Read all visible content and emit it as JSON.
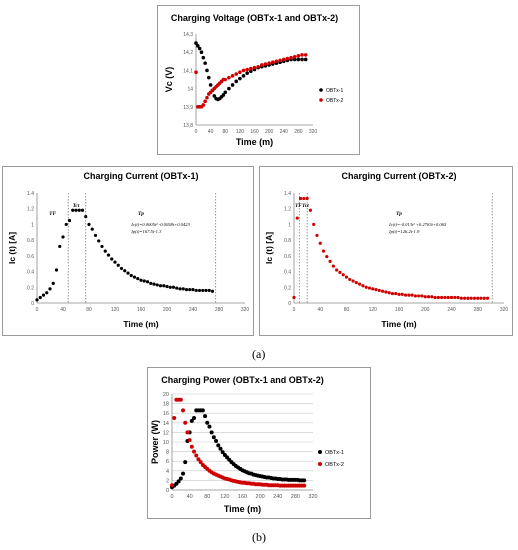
{
  "chart_data": [
    {
      "type": "scatter",
      "title": "Charging Voltage (OBTx-1 and OBTx-2)",
      "xlabel": "Time (m)",
      "ylabel": "Vc (V)",
      "xlim": [
        0,
        320
      ],
      "ylim": [
        13.8,
        14.3
      ],
      "xticks": [
        0,
        40,
        80,
        120,
        160,
        200,
        240,
        280,
        320
      ],
      "yticks": [
        13.8,
        13.9,
        14,
        14.1,
        14.2,
        14.3
      ],
      "xtick_labels": [
        "0",
        "40",
        "80",
        "120",
        "160",
        "200",
        "240",
        "280",
        "320"
      ],
      "ytick_labels": [
        "13,8",
        "13,9",
        "14",
        "14,1",
        "14,2",
        "14,3"
      ],
      "grid": false,
      "legend": "right",
      "series": [
        {
          "name": "OBTx-1",
          "color": "#000000",
          "x": [
            0,
            5,
            10,
            15,
            20,
            25,
            30,
            35,
            40,
            45,
            50,
            55,
            60,
            65,
            70,
            75,
            80,
            90,
            100,
            110,
            120,
            130,
            140,
            150,
            160,
            170,
            180,
            190,
            200,
            210,
            220,
            230,
            240,
            250,
            260,
            270,
            280,
            290,
            300
          ],
          "y": [
            14.25,
            14.235,
            14.22,
            14.2,
            14.17,
            14.14,
            14.1,
            14.06,
            14.02,
            13.99,
            13.96,
            13.945,
            13.94,
            13.945,
            13.955,
            13.965,
            13.98,
            14.0,
            14.02,
            14.04,
            14.055,
            14.07,
            14.085,
            14.095,
            14.105,
            14.115,
            14.12,
            14.125,
            14.13,
            14.135,
            14.14,
            14.145,
            14.15,
            14.155,
            14.16,
            14.16,
            14.16,
            14.16,
            14.16
          ]
        },
        {
          "name": "OBTx-2",
          "color": "#d00000",
          "x": [
            0,
            5,
            10,
            15,
            20,
            25,
            30,
            35,
            40,
            45,
            50,
            55,
            60,
            65,
            70,
            75,
            80,
            90,
            100,
            110,
            120,
            130,
            140,
            150,
            160,
            170,
            180,
            190,
            200,
            210,
            220,
            230,
            240,
            250,
            260,
            270,
            280,
            290,
            300
          ],
          "y": [
            14.09,
            13.9,
            13.9,
            13.9,
            13.91,
            13.93,
            13.95,
            13.97,
            13.98,
            13.99,
            14.0,
            14.01,
            14.02,
            14.03,
            14.04,
            14.05,
            14.05,
            14.06,
            14.07,
            14.08,
            14.09,
            14.1,
            14.105,
            14.11,
            14.115,
            14.12,
            14.13,
            14.135,
            14.14,
            14.145,
            14.15,
            14.155,
            14.16,
            14.165,
            14.17,
            14.175,
            14.18,
            14.185,
            14.185
          ]
        }
      ]
    },
    {
      "type": "scatter",
      "title": "Charging Current (OBTx-1)",
      "xlabel": "Time (m)",
      "ylabel": "Ic (t) [A]",
      "xlim": [
        0,
        320
      ],
      "ylim": [
        0,
        1.4
      ],
      "xticks": [
        0,
        40,
        80,
        120,
        160,
        200,
        240,
        280,
        320
      ],
      "yticks": [
        0,
        0.2,
        0.4,
        0.6,
        0.8,
        1,
        1.2,
        1.4
      ],
      "xtick_labels": [
        "0",
        "40",
        "80",
        "120",
        "160",
        "200",
        "240",
        "280",
        "320"
      ],
      "ytick_labels": [
        "0",
        "0.2",
        "0.4",
        "0.6",
        "0.8",
        "1",
        "1.2",
        "1.4"
      ],
      "grid": false,
      "series": [
        {
          "name": "",
          "color": "#000000",
          "x": [
            0,
            5,
            10,
            15,
            20,
            25,
            30,
            35,
            40,
            45,
            50,
            55,
            60,
            65,
            70,
            75,
            80,
            85,
            90,
            95,
            100,
            105,
            110,
            115,
            120,
            125,
            130,
            135,
            140,
            145,
            150,
            155,
            160,
            165,
            170,
            175,
            180,
            185,
            190,
            195,
            200,
            205,
            210,
            215,
            220,
            225,
            230,
            235,
            240,
            245,
            250,
            255,
            260,
            265,
            270
          ],
          "y": [
            0.04,
            0.07,
            0.1,
            0.13,
            0.18,
            0.25,
            0.42,
            0.72,
            0.84,
            1.0,
            1.05,
            1.18,
            1.18,
            1.18,
            1.18,
            1.1,
            1.0,
            0.94,
            0.86,
            0.79,
            0.72,
            0.66,
            0.61,
            0.56,
            0.52,
            0.48,
            0.44,
            0.41,
            0.38,
            0.35,
            0.33,
            0.31,
            0.29,
            0.28,
            0.27,
            0.25,
            0.24,
            0.23,
            0.22,
            0.22,
            0.21,
            0.2,
            0.2,
            0.19,
            0.18,
            0.18,
            0.17,
            0.17,
            0.17,
            0.16,
            0.16,
            0.16,
            0.16,
            0.16,
            0.15
          ]
        }
      ],
      "markers": [
        {
          "x": 48,
          "label": "Tf"
        },
        {
          "x": 75,
          "label": "Tct"
        },
        {
          "x": 275,
          "label": ""
        }
      ],
      "region_labels": [
        {
          "x": 24,
          "y": 1.12,
          "text": "TF"
        },
        {
          "x": 60,
          "y": 1.22,
          "text": "Tct"
        },
        {
          "x": 160,
          "y": 1.12,
          "text": "Tp"
        }
      ],
      "annotations": [
        "Ic(t)=0.0005t² -0.0058t+0.0423",
        "Ip(t)=167.5t-1.3"
      ]
    },
    {
      "type": "scatter",
      "title": "Charging Current (OBTx-2)",
      "xlabel": "Time (m)",
      "ylabel": "Ic (t) [A]",
      "xlim": [
        0,
        320
      ],
      "ylim": [
        0,
        1.4
      ],
      "xticks": [
        0,
        40,
        80,
        120,
        160,
        200,
        240,
        280,
        320
      ],
      "yticks": [
        0,
        0.2,
        0.4,
        0.6,
        0.8,
        1,
        1.2,
        1.4
      ],
      "xtick_labels": [
        "0",
        "40",
        "80",
        "120",
        "160",
        "200",
        "240",
        "280",
        "320"
      ],
      "ytick_labels": [
        "0",
        "0.2",
        "0.4",
        "0.6",
        "0.8",
        "1",
        "1.2",
        "1.4"
      ],
      "grid": false,
      "series": [
        {
          "name": "",
          "color": "#d00000",
          "x": [
            0,
            5,
            10,
            15,
            20,
            25,
            30,
            35,
            40,
            45,
            50,
            55,
            60,
            65,
            70,
            75,
            80,
            85,
            90,
            95,
            100,
            105,
            110,
            115,
            120,
            125,
            130,
            135,
            140,
            145,
            150,
            155,
            160,
            165,
            170,
            175,
            180,
            185,
            190,
            195,
            200,
            205,
            210,
            215,
            220,
            225,
            230,
            235,
            240,
            245,
            250,
            255,
            260,
            265,
            270,
            275,
            280,
            285,
            290,
            295
          ],
          "y": [
            0.07,
            1.08,
            1.33,
            1.33,
            1.33,
            1.18,
            1.0,
            0.86,
            0.76,
            0.66,
            0.59,
            0.53,
            0.47,
            0.42,
            0.39,
            0.36,
            0.33,
            0.3,
            0.28,
            0.26,
            0.24,
            0.22,
            0.2,
            0.19,
            0.18,
            0.17,
            0.16,
            0.15,
            0.14,
            0.13,
            0.12,
            0.12,
            0.11,
            0.11,
            0.1,
            0.1,
            0.1,
            0.09,
            0.09,
            0.09,
            0.08,
            0.08,
            0.08,
            0.07,
            0.07,
            0.07,
            0.07,
            0.07,
            0.07,
            0.07,
            0.07,
            0.06,
            0.06,
            0.06,
            0.06,
            0.06,
            0.06,
            0.06,
            0.06,
            0.06
          ]
        }
      ],
      "markers": [
        {
          "x": 8,
          "label": ""
        },
        {
          "x": 20,
          "label": ""
        },
        {
          "x": 302,
          "label": ""
        }
      ],
      "region_labels": [
        {
          "x": 12,
          "y": 1.22,
          "text": "TFTct"
        },
        {
          "x": 160,
          "y": 1.12,
          "text": "Tp"
        }
      ],
      "annotations": [
        "Ic(t)=-0.013t² +0.2763t+0.065",
        "Ip(t)=126.2t-1.9"
      ]
    },
    {
      "type": "scatter",
      "title": "Charging Power (OBTx-1 and OBTx-2)",
      "xlabel": "Time (m)",
      "ylabel": "Power (W)",
      "xlim": [
        0,
        320
      ],
      "ylim": [
        0,
        20
      ],
      "xticks": [
        0,
        40,
        80,
        120,
        160,
        200,
        240,
        280,
        320
      ],
      "yticks": [
        0,
        2,
        4,
        6,
        8,
        10,
        12,
        14,
        16,
        18,
        20
      ],
      "xtick_labels": [
        "0",
        "40",
        "80",
        "120",
        "160",
        "200",
        "240",
        "280",
        "320"
      ],
      "ytick_labels": [
        "0",
        "2",
        "4",
        "6",
        "8",
        "10",
        "12",
        "14",
        "16",
        "18",
        "20"
      ],
      "grid": true,
      "legend": "right",
      "series": [
        {
          "name": "OBTx-1",
          "color": "#000000",
          "x": [
            0,
            5,
            10,
            15,
            20,
            25,
            30,
            35,
            40,
            45,
            50,
            55,
            60,
            65,
            70,
            75,
            80,
            85,
            90,
            95,
            100,
            105,
            110,
            115,
            120,
            125,
            130,
            135,
            140,
            145,
            150,
            155,
            160,
            165,
            170,
            175,
            180,
            185,
            190,
            195,
            200,
            205,
            210,
            215,
            220,
            225,
            230,
            235,
            240,
            245,
            250,
            255,
            260,
            265,
            270,
            275,
            280,
            285,
            290,
            295,
            300
          ],
          "y": [
            0.6,
            0.9,
            1.3,
            1.8,
            2.4,
            3.4,
            5.8,
            10.2,
            12.0,
            14.4,
            15.0,
            16.6,
            16.6,
            16.6,
            16.6,
            15.4,
            14.0,
            13.2,
            12.0,
            11.0,
            10.2,
            9.3,
            8.6,
            7.9,
            7.3,
            6.8,
            6.3,
            5.8,
            5.4,
            5.0,
            4.7,
            4.4,
            4.1,
            3.9,
            3.7,
            3.5,
            3.4,
            3.2,
            3.1,
            3.0,
            2.9,
            2.8,
            2.7,
            2.6,
            2.6,
            2.5,
            2.4,
            2.4,
            2.3,
            2.3,
            2.2,
            2.2,
            2.2,
            2.1,
            2.1,
            2.1,
            2.1,
            2.1,
            2.0,
            2.0,
            2.0
          ]
        },
        {
          "name": "OBTx-2",
          "color": "#d00000",
          "x": [
            0,
            5,
            10,
            15,
            20,
            25,
            30,
            35,
            40,
            45,
            50,
            55,
            60,
            65,
            70,
            75,
            80,
            85,
            90,
            95,
            100,
            105,
            110,
            115,
            120,
            125,
            130,
            135,
            140,
            145,
            150,
            155,
            160,
            165,
            170,
            175,
            180,
            185,
            190,
            195,
            200,
            205,
            210,
            215,
            220,
            225,
            230,
            235,
            240,
            245,
            250,
            255,
            260,
            265,
            270,
            275,
            280,
            285,
            290,
            295,
            300
          ],
          "y": [
            1.0,
            15.0,
            18.8,
            18.8,
            18.8,
            16.6,
            14.0,
            12.0,
            10.4,
            9.0,
            8.0,
            7.2,
            6.4,
            5.8,
            5.2,
            4.8,
            4.4,
            4.0,
            3.7,
            3.4,
            3.2,
            3.0,
            2.8,
            2.6,
            2.4,
            2.3,
            2.2,
            2.0,
            1.9,
            1.8,
            1.7,
            1.6,
            1.5,
            1.5,
            1.4,
            1.4,
            1.3,
            1.3,
            1.2,
            1.2,
            1.2,
            1.1,
            1.1,
            1.1,
            1.0,
            1.0,
            1.0,
            1.0,
            1.0,
            0.9,
            0.9,
            0.9,
            0.9,
            0.9,
            0.9,
            0.9,
            0.9,
            0.9,
            0.9,
            0.9,
            0.9
          ]
        }
      ]
    }
  ],
  "captions": [
    "(a)",
    "(b)"
  ]
}
